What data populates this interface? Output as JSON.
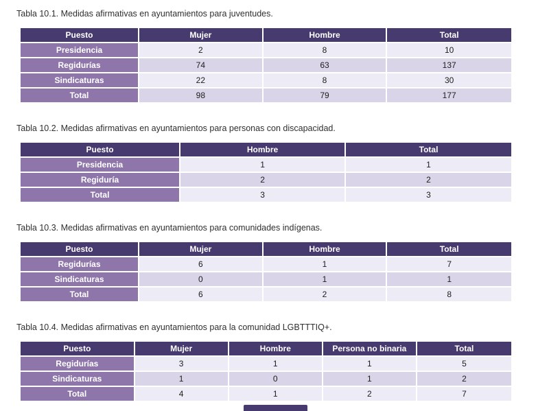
{
  "colors": {
    "page_bg": "#ffffff",
    "header_bg": "#463a6e",
    "header_text": "#ffffff",
    "row_label_bg": "#8e76ab",
    "row_label_text": "#ffffff",
    "row_light_bg": "#edebf5",
    "row_dark_bg": "#dad4e8",
    "cell_text": "#1c1c1c",
    "caption_text": "#2f2f2f"
  },
  "tables": [
    {
      "caption": "Tabla 10.1. Medidas afirmativas en ayuntamientos para juventudes.",
      "headers": [
        "Puesto",
        "Mujer",
        "Hombre",
        "Total"
      ],
      "rows": [
        {
          "label": "Presidencia",
          "values": [
            "2",
            "8",
            "10"
          ]
        },
        {
          "label": "Regidurías",
          "values": [
            "74",
            "63",
            "137"
          ]
        },
        {
          "label": "Sindicaturas",
          "values": [
            "22",
            "8",
            "30"
          ]
        },
        {
          "label": "Total",
          "values": [
            "98",
            "79",
            "177"
          ]
        }
      ]
    },
    {
      "caption": "Tabla 10.2. Medidas afirmativas en ayuntamientos para personas con discapacidad.",
      "headers": [
        "Puesto",
        "Hombre",
        "Total"
      ],
      "rows": [
        {
          "label": "Presidencia",
          "values": [
            "1",
            "1"
          ]
        },
        {
          "label": "Regiduría",
          "values": [
            "2",
            "2"
          ]
        },
        {
          "label": "Total",
          "values": [
            "3",
            "3"
          ]
        }
      ]
    },
    {
      "caption": "Tabla 10.3. Medidas afirmativas en ayuntamientos para comunidades indígenas.",
      "headers": [
        "Puesto",
        "Mujer",
        "Hombre",
        "Total"
      ],
      "rows": [
        {
          "label": "Regidurías",
          "values": [
            "6",
            "1",
            "7"
          ]
        },
        {
          "label": "Sindicaturas",
          "values": [
            "0",
            "1",
            "1"
          ]
        },
        {
          "label": "Total",
          "values": [
            "6",
            "2",
            "8"
          ]
        }
      ]
    },
    {
      "caption": "Tabla 10.4. Medidas afirmativas en ayuntamientos para la comunidad LGBTTTIQ+.",
      "headers": [
        "Puesto",
        "Mujer",
        "Hombre",
        "Persona no binaria",
        "Total"
      ],
      "rows": [
        {
          "label": "Regidurías",
          "values": [
            "3",
            "1",
            "1",
            "5"
          ]
        },
        {
          "label": "Sindicaturas",
          "values": [
            "1",
            "0",
            "1",
            "2"
          ]
        },
        {
          "label": "Total",
          "values": [
            "4",
            "1",
            "2",
            "7"
          ]
        }
      ]
    }
  ]
}
